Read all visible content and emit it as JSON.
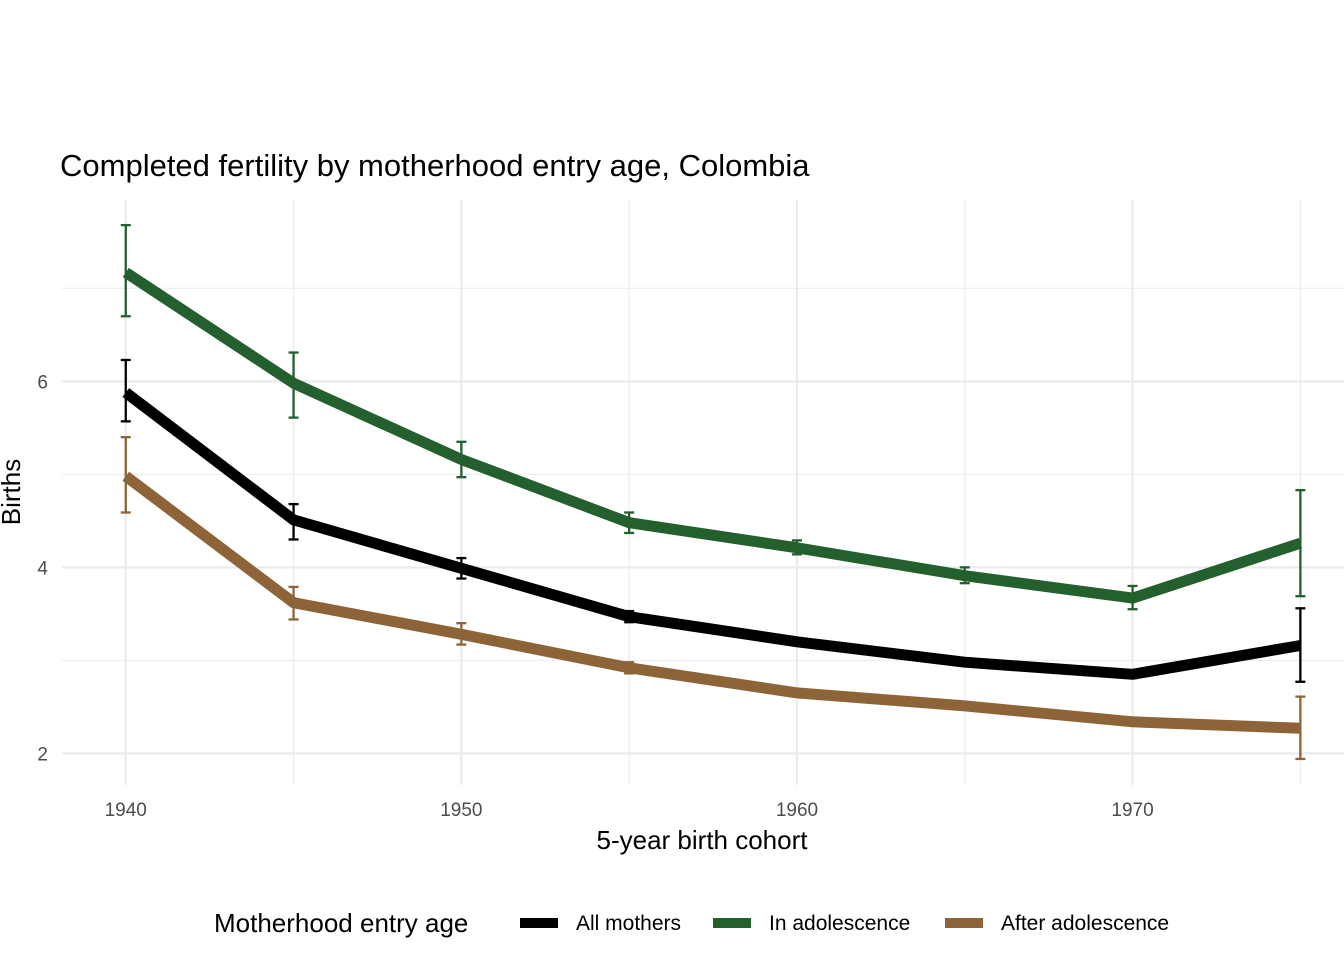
{
  "chart_data": {
    "type": "line",
    "title": "Completed fertility by motherhood entry age,  Colombia",
    "xlabel": "5-year birth cohort",
    "ylabel": "Births",
    "x": [
      1940,
      1945,
      1950,
      1955,
      1960,
      1965,
      1970,
      1975
    ],
    "xlim": [
      1938.1,
      1976.3
    ],
    "ylim": [
      1.66,
      7.95
    ],
    "x_ticks": [
      1940,
      1950,
      1960,
      1970
    ],
    "x_tick_labels": [
      "1940",
      "1950",
      "1960",
      "1970"
    ],
    "x_minor_ticks": [
      1945,
      1955,
      1965,
      1975
    ],
    "y_ticks": [
      2,
      4,
      6
    ],
    "y_tick_labels": [
      "2",
      "4",
      "6"
    ],
    "y_minor_ticks": [
      3,
      5,
      7
    ],
    "grid": true,
    "legend": {
      "title": "Motherhood entry age",
      "position": "bottom"
    },
    "series": [
      {
        "name": "All mothers",
        "color": "#000000",
        "values": [
          5.88,
          4.51,
          3.99,
          3.47,
          3.2,
          2.98,
          2.85,
          3.16
        ],
        "err_low": [
          5.57,
          4.3,
          3.88,
          3.41,
          3.17,
          2.95,
          2.81,
          2.77
        ],
        "err_high": [
          6.23,
          4.68,
          4.1,
          3.53,
          3.23,
          3.01,
          2.89,
          3.56
        ]
      },
      {
        "name": "In adolescence",
        "color": "#245f2e",
        "values": [
          7.17,
          5.98,
          5.16,
          4.48,
          4.21,
          3.91,
          3.67,
          4.26
        ],
        "err_low": [
          6.7,
          5.61,
          4.97,
          4.37,
          4.14,
          3.83,
          3.55,
          3.69
        ],
        "err_high": [
          7.68,
          6.31,
          5.35,
          4.59,
          4.29,
          4.0,
          3.8,
          4.83
        ]
      },
      {
        "name": "After adolescence",
        "color": "#8c6437",
        "values": [
          4.98,
          3.62,
          3.28,
          2.92,
          2.65,
          2.51,
          2.34,
          2.27
        ],
        "err_low": [
          4.59,
          3.44,
          3.17,
          2.86,
          2.62,
          2.48,
          2.3,
          1.94
        ],
        "err_high": [
          5.4,
          3.79,
          3.4,
          2.98,
          2.68,
          2.54,
          2.38,
          2.61
        ]
      }
    ]
  }
}
